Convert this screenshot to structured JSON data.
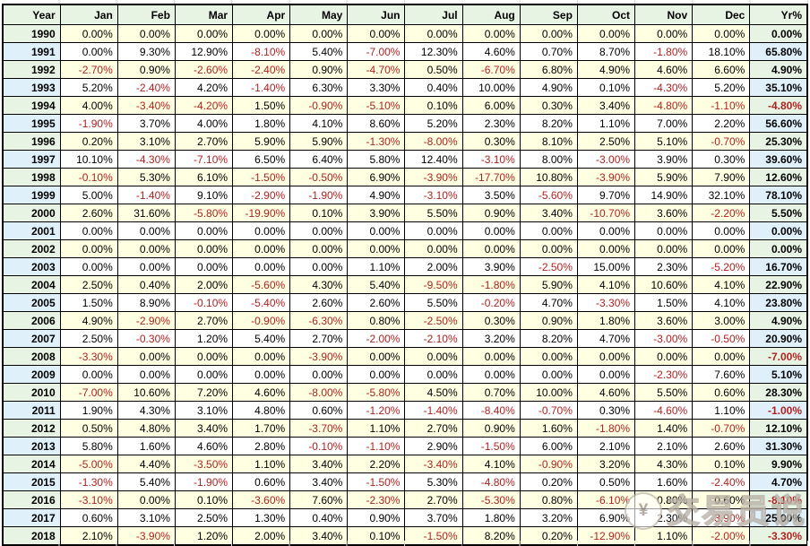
{
  "table": {
    "columns": [
      "Year",
      "Jan",
      "Feb",
      "Mar",
      "Apr",
      "May",
      "Jun",
      "Jul",
      "Aug",
      "Sep",
      "Oct",
      "Nov",
      "Dec",
      "Yr%"
    ],
    "rows": [
      [
        "1990",
        "0.00%",
        "0.00%",
        "0.00%",
        "0.00%",
        "0.00%",
        "0.00%",
        "0.00%",
        "0.00%",
        "0.00%",
        "0.00%",
        "0.00%",
        "0.00%",
        "0.00%"
      ],
      [
        "1991",
        "0.00%",
        "9.30%",
        "12.90%",
        "-8.10%",
        "5.40%",
        "-7.00%",
        "12.30%",
        "4.60%",
        "0.70%",
        "8.70%",
        "-1.80%",
        "18.10%",
        "65.80%"
      ],
      [
        "1992",
        "-2.70%",
        "0.90%",
        "-2.60%",
        "-2.40%",
        "0.90%",
        "-4.70%",
        "0.50%",
        "-6.70%",
        "6.80%",
        "4.90%",
        "4.60%",
        "6.60%",
        "4.90%"
      ],
      [
        "1993",
        "5.20%",
        "-2.40%",
        "4.20%",
        "-1.40%",
        "6.30%",
        "3.30%",
        "0.40%",
        "10.00%",
        "4.90%",
        "0.10%",
        "-4.30%",
        "5.20%",
        "35.10%"
      ],
      [
        "1994",
        "4.00%",
        "-3.40%",
        "-4.20%",
        "1.50%",
        "-0.90%",
        "-5.10%",
        "0.10%",
        "6.00%",
        "0.30%",
        "3.40%",
        "-4.80%",
        "-1.10%",
        "-4.80%"
      ],
      [
        "1995",
        "-1.90%",
        "3.70%",
        "4.00%",
        "1.80%",
        "4.10%",
        "8.60%",
        "5.20%",
        "2.30%",
        "8.20%",
        "1.10%",
        "7.00%",
        "2.20%",
        "56.60%"
      ],
      [
        "1996",
        "0.20%",
        "3.10%",
        "2.70%",
        "5.90%",
        "5.90%",
        "-1.30%",
        "-8.00%",
        "0.30%",
        "8.10%",
        "2.50%",
        "5.10%",
        "-0.70%",
        "25.30%"
      ],
      [
        "1997",
        "10.10%",
        "-4.30%",
        "-7.10%",
        "6.50%",
        "6.40%",
        "5.80%",
        "12.40%",
        "-3.10%",
        "8.00%",
        "-3.00%",
        "3.90%",
        "0.30%",
        "39.60%"
      ],
      [
        "1998",
        "-0.10%",
        "5.30%",
        "6.10%",
        "-1.50%",
        "-0.50%",
        "6.90%",
        "-3.90%",
        "-17.70%",
        "10.80%",
        "-3.90%",
        "5.90%",
        "7.90%",
        "12.60%"
      ],
      [
        "1999",
        "5.00%",
        "-1.40%",
        "9.10%",
        "-2.90%",
        "-1.90%",
        "4.90%",
        "-3.10%",
        "3.50%",
        "-5.60%",
        "9.70%",
        "14.90%",
        "32.10%",
        "78.10%"
      ],
      [
        "2000",
        "2.60%",
        "31.60%",
        "-5.80%",
        "-19.90%",
        "0.10%",
        "3.90%",
        "5.50%",
        "0.90%",
        "3.40%",
        "-10.70%",
        "3.60%",
        "-2.20%",
        "5.50%"
      ],
      [
        "2001",
        "0.00%",
        "0.00%",
        "0.00%",
        "0.00%",
        "0.00%",
        "0.00%",
        "0.00%",
        "0.00%",
        "0.00%",
        "0.00%",
        "0.00%",
        "0.00%",
        "0.00%"
      ],
      [
        "2002",
        "0.00%",
        "0.00%",
        "0.00%",
        "0.00%",
        "0.00%",
        "0.00%",
        "0.00%",
        "0.00%",
        "0.00%",
        "0.00%",
        "0.00%",
        "0.00%",
        "0.00%"
      ],
      [
        "2003",
        "0.00%",
        "0.00%",
        "0.00%",
        "0.00%",
        "0.00%",
        "1.10%",
        "2.00%",
        "3.90%",
        "-2.50%",
        "15.00%",
        "2.30%",
        "-5.20%",
        "16.70%"
      ],
      [
        "2004",
        "2.50%",
        "0.40%",
        "2.00%",
        "-5.60%",
        "4.30%",
        "5.40%",
        "-9.50%",
        "-1.80%",
        "5.90%",
        "4.10%",
        "10.60%",
        "4.10%",
        "22.90%"
      ],
      [
        "2005",
        "1.50%",
        "8.90%",
        "-0.10%",
        "-5.40%",
        "2.60%",
        "2.60%",
        "5.50%",
        "-0.20%",
        "4.70%",
        "-3.30%",
        "1.50%",
        "4.10%",
        "23.80%"
      ],
      [
        "2006",
        "4.90%",
        "-2.90%",
        "2.70%",
        "-0.90%",
        "-6.30%",
        "0.80%",
        "-2.50%",
        "0.30%",
        "0.90%",
        "1.80%",
        "3.60%",
        "3.00%",
        "4.90%"
      ],
      [
        "2007",
        "2.50%",
        "-0.30%",
        "1.20%",
        "5.40%",
        "2.70%",
        "-2.00%",
        "-2.10%",
        "3.20%",
        "8.20%",
        "4.70%",
        "-3.00%",
        "-0.50%",
        "20.90%"
      ],
      [
        "2008",
        "-3.30%",
        "0.00%",
        "0.00%",
        "0.00%",
        "-3.90%",
        "0.00%",
        "0.00%",
        "0.00%",
        "0.00%",
        "0.00%",
        "0.00%",
        "0.00%",
        "-7.00%"
      ],
      [
        "2009",
        "0.00%",
        "0.00%",
        "0.00%",
        "0.00%",
        "0.00%",
        "0.00%",
        "0.00%",
        "0.00%",
        "0.00%",
        "0.00%",
        "-2.30%",
        "7.60%",
        "5.10%"
      ],
      [
        "2010",
        "-7.00%",
        "10.60%",
        "7.20%",
        "4.60%",
        "-8.00%",
        "-5.80%",
        "4.50%",
        "0.70%",
        "10.00%",
        "4.60%",
        "5.50%",
        "0.60%",
        "28.30%"
      ],
      [
        "2011",
        "1.90%",
        "4.30%",
        "3.10%",
        "4.80%",
        "0.60%",
        "-1.20%",
        "-1.40%",
        "-8.40%",
        "-0.70%",
        "0.30%",
        "-4.60%",
        "1.10%",
        "-1.00%"
      ],
      [
        "2012",
        "0.50%",
        "4.80%",
        "3.40%",
        "1.70%",
        "-3.70%",
        "1.10%",
        "2.70%",
        "0.90%",
        "1.60%",
        "-1.80%",
        "1.40%",
        "-0.70%",
        "12.10%"
      ],
      [
        "2013",
        "5.80%",
        "1.60%",
        "4.60%",
        "2.80%",
        "-0.10%",
        "-1.10%",
        "2.90%",
        "-1.50%",
        "6.00%",
        "2.10%",
        "2.10%",
        "2.60%",
        "31.30%"
      ],
      [
        "2014",
        "-5.00%",
        "4.40%",
        "-3.50%",
        "1.10%",
        "3.40%",
        "2.20%",
        "-3.40%",
        "4.10%",
        "-0.90%",
        "3.20%",
        "4.30%",
        "0.10%",
        "9.90%"
      ],
      [
        "2015",
        "-1.30%",
        "5.40%",
        "-1.90%",
        "0.60%",
        "3.40%",
        "-1.50%",
        "5.30%",
        "-4.80%",
        "0.20%",
        "0.50%",
        "1.60%",
        "-2.40%",
        "4.70%"
      ],
      [
        "2016",
        "-3.10%",
        "0.00%",
        "0.10%",
        "-3.60%",
        "7.60%",
        "-2.30%",
        "2.70%",
        "-5.30%",
        "0.80%",
        "-6.10%",
        "0.80%",
        "0.60%",
        "-8.10%"
      ],
      [
        "2017",
        "0.60%",
        "3.10%",
        "2.50%",
        "1.30%",
        "0.40%",
        "0.90%",
        "3.70%",
        "1.80%",
        "3.20%",
        "6.90%",
        "2.30%",
        "-3.90%",
        "25.00%"
      ],
      [
        "2018",
        "2.10%",
        "-3.90%",
        "1.20%",
        "2.00%",
        "3.40%",
        "0.10%",
        "-1.50%",
        "8.20%",
        "0.20%",
        "-12.90%",
        "1.10%",
        "-2.00%",
        "-3.30%"
      ]
    ]
  },
  "watermark": {
    "symbol": "¥",
    "text": "交易员说"
  },
  "colors": {
    "header_bg": "#e7f4e3",
    "row_even_bg": "#ffffe1",
    "row_odd_bg": "#ffffff",
    "year_even_bg": "#e7f4e3",
    "year_odd_bg": "#dff0fb",
    "negative_text": "#b22222",
    "positive_text": "#000000",
    "border": "#000000"
  }
}
